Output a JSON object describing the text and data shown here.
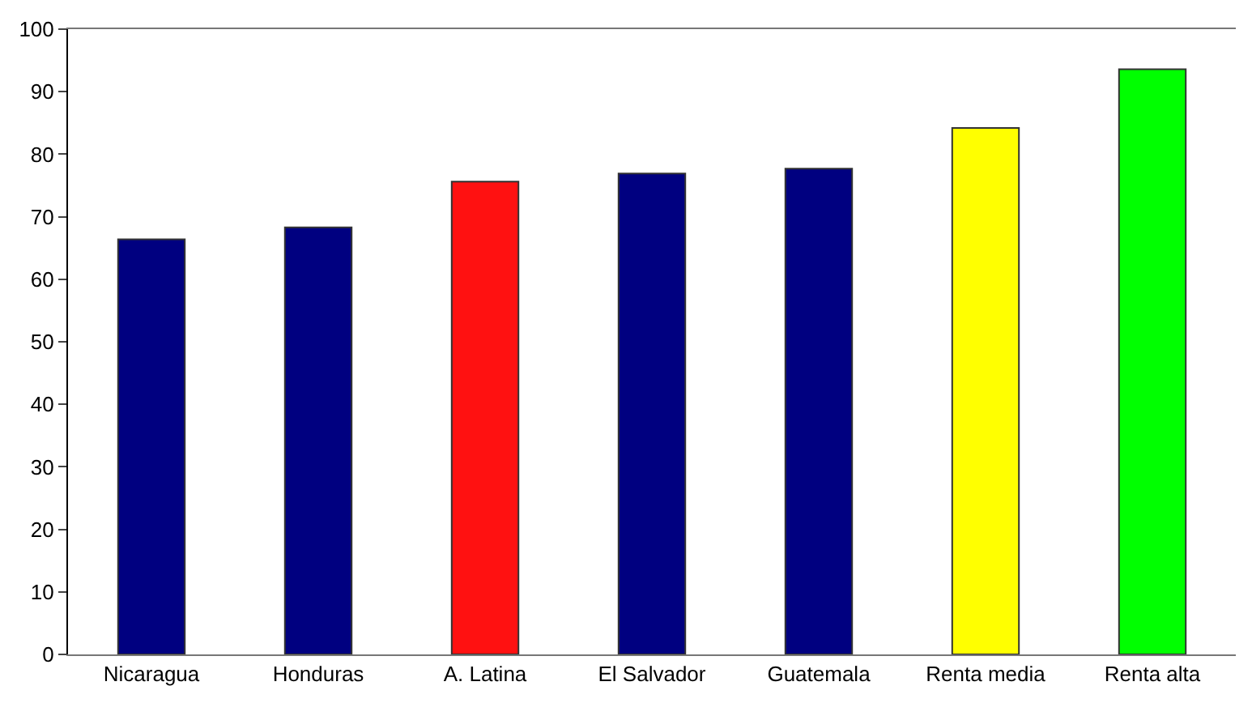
{
  "chart_data": {
    "type": "bar",
    "categories": [
      "Nicaragua",
      "Honduras",
      "A. Latina",
      "El Salvador",
      "Guatemala",
      "Renta media",
      "Renta alta"
    ],
    "values": [
      66.4,
      68.3,
      75.6,
      76.9,
      77.7,
      84.2,
      93.6
    ],
    "colors": [
      "#000080",
      "#000080",
      "#ff1111",
      "#000080",
      "#000080",
      "#ffff00",
      "#00ff00"
    ],
    "ylim": [
      0,
      100
    ],
    "yticks": [
      0,
      10,
      20,
      30,
      40,
      50,
      60,
      70,
      80,
      90,
      100
    ]
  }
}
